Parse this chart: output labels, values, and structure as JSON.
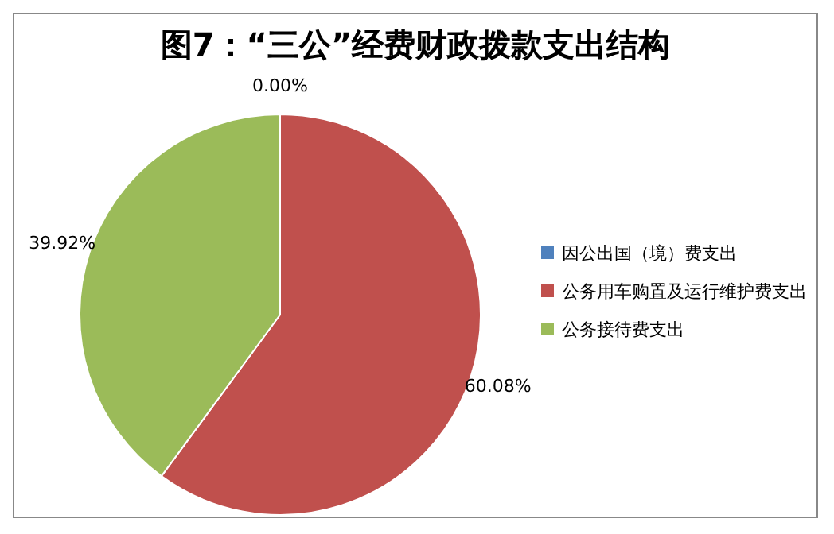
{
  "chart_data": {
    "type": "pie",
    "title": "图7：“三公”经费财政拨款支出结构",
    "categories": [
      "因公出国（境）费支出",
      "公务用车购置及运行维护费支出",
      "公务接待费支出"
    ],
    "values": [
      0,
      60.08,
      39.92
    ],
    "value_labels": [
      "0.00%",
      "60.08%",
      "39.92%"
    ],
    "colors": [
      "#4f81bd",
      "#c0504d",
      "#9bbb59"
    ],
    "legend": "right"
  }
}
